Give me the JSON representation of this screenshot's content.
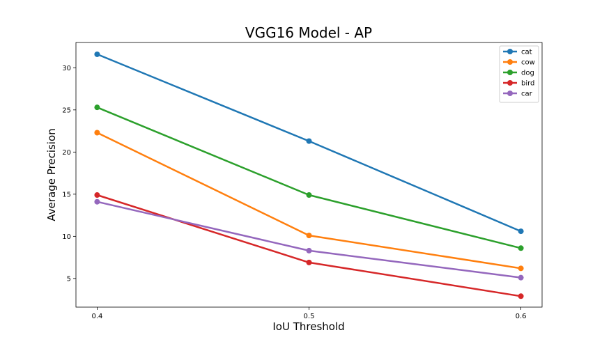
{
  "chart_data": {
    "type": "line",
    "title": "VGG16 Model - AP",
    "xlabel": "IoU Threshold",
    "ylabel": "Average Precision",
    "x": [
      0.4,
      0.5,
      0.6
    ],
    "x_tick_labels": [
      "0.4",
      "0.5",
      "0.6"
    ],
    "y_ticks": [
      5,
      10,
      15,
      20,
      25,
      30
    ],
    "xlim": [
      0.39,
      0.61
    ],
    "ylim": [
      1.6,
      33.0
    ],
    "grid": false,
    "legend_position": "top-right",
    "series": [
      {
        "name": "cat",
        "color": "#1f77b4",
        "values": [
          31.6,
          21.3,
          10.6
        ]
      },
      {
        "name": "cow",
        "color": "#ff7f0e",
        "values": [
          22.3,
          10.1,
          6.2
        ]
      },
      {
        "name": "dog",
        "color": "#2ca02c",
        "values": [
          25.3,
          14.9,
          8.6
        ]
      },
      {
        "name": "bird",
        "color": "#d62728",
        "values": [
          14.9,
          6.9,
          2.9
        ]
      },
      {
        "name": "car",
        "color": "#9467bd",
        "values": [
          14.1,
          8.3,
          5.1
        ]
      }
    ]
  }
}
